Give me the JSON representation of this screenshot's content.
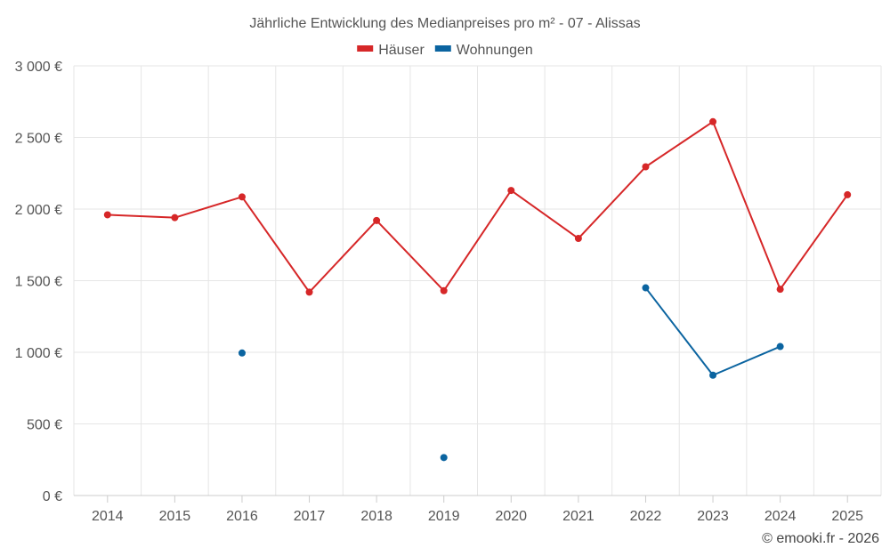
{
  "chart_data": {
    "type": "line",
    "title": "Jährliche Entwicklung des Medianpreises pro m² - 07 - Alissas",
    "categories": [
      "2014",
      "2015",
      "2016",
      "2017",
      "2018",
      "2019",
      "2020",
      "2021",
      "2022",
      "2023",
      "2024",
      "2025"
    ],
    "ylim": [
      0,
      3000
    ],
    "yticks": [
      0,
      500,
      1000,
      1500,
      2000,
      2500,
      3000
    ],
    "ytick_labels": [
      "0 €",
      "500 €",
      "1 000 €",
      "1 500 €",
      "2 000 €",
      "2 500 €",
      "3 000 €"
    ],
    "xlabel": "",
    "ylabel": "",
    "grid": true,
    "legend_position": "top-center",
    "series": [
      {
        "name": "Häuser",
        "color": "#d62728",
        "values": [
          1960,
          1940,
          2085,
          1420,
          1920,
          1430,
          2130,
          1795,
          2295,
          2610,
          1440,
          2100
        ]
      },
      {
        "name": "Wohnungen",
        "color": "#0b64a0",
        "values": [
          null,
          null,
          995,
          null,
          null,
          265,
          null,
          null,
          1450,
          840,
          1040,
          null
        ]
      }
    ],
    "credit": "© emooki.fr - 2026"
  }
}
